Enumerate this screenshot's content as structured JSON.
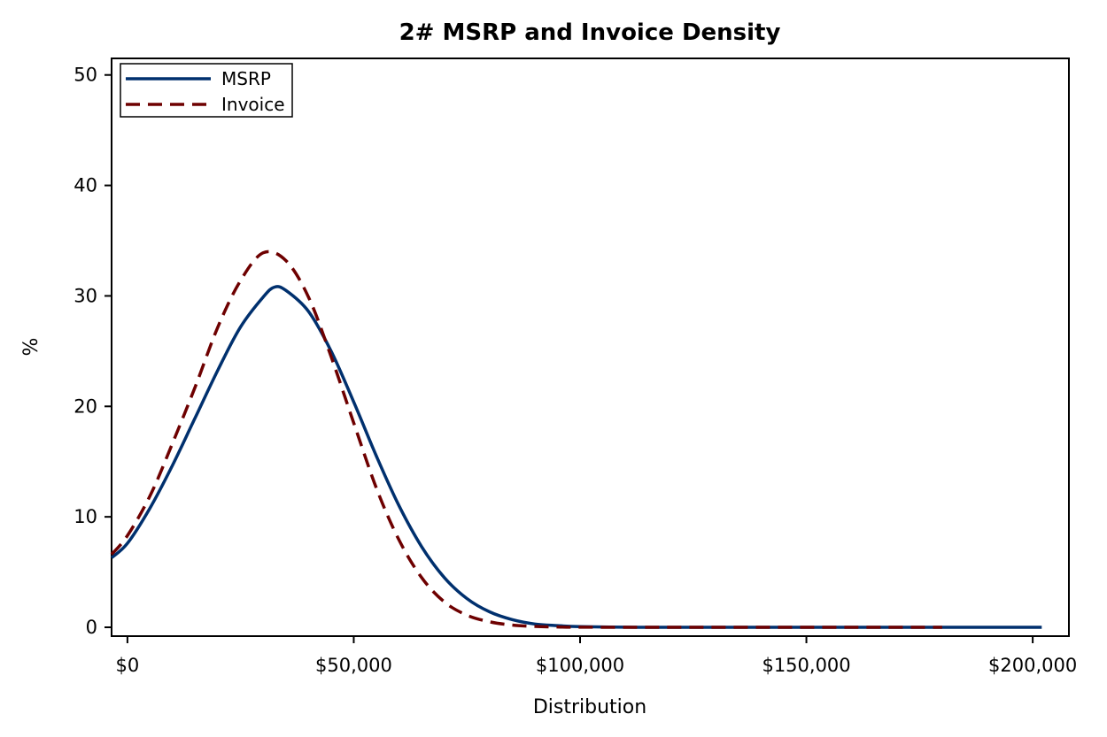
{
  "chart_data": {
    "type": "line",
    "title": "2# MSRP and Invoice Density",
    "xlabel": "Distribution",
    "ylabel": "%",
    "xlim": [
      -3500,
      208000
    ],
    "ylim": [
      -0.8,
      51.5
    ],
    "x_ticks": [
      {
        "value": 0,
        "label": "$0"
      },
      {
        "value": 50000,
        "label": "$50,000"
      },
      {
        "value": 100000,
        "label": "$100,000"
      },
      {
        "value": 150000,
        "label": "$150,000"
      },
      {
        "value": 200000,
        "label": "$200,000"
      }
    ],
    "y_ticks": [
      {
        "value": 0,
        "label": "0"
      },
      {
        "value": 10,
        "label": "10"
      },
      {
        "value": 20,
        "label": "20"
      },
      {
        "value": 30,
        "label": "30"
      },
      {
        "value": 40,
        "label": "40"
      },
      {
        "value": 50,
        "label": "50"
      }
    ],
    "grid": false,
    "legend": {
      "placement": "top-left"
    },
    "series": [
      {
        "name": "MSRP",
        "color": "#00306E",
        "style": "solid",
        "x": [
          -3500,
          0,
          5000,
          10000,
          15000,
          20000,
          25000,
          30000,
          32500,
          35000,
          40000,
          45000,
          50000,
          55000,
          60000,
          65000,
          70000,
          75000,
          80000,
          85000,
          90000,
          95000,
          100000,
          110000,
          120000,
          140000,
          160000,
          180000,
          202000
        ],
        "values": [
          6.3,
          7.6,
          10.8,
          14.7,
          19.0,
          23.3,
          27.2,
          29.9,
          30.8,
          30.5,
          28.6,
          25.0,
          20.4,
          15.5,
          11.0,
          7.3,
          4.5,
          2.6,
          1.4,
          0.7,
          0.3,
          0.15,
          0.06,
          0.01,
          0,
          0,
          0,
          0,
          0
        ]
      },
      {
        "name": "Invoice",
        "color": "#6E0000",
        "style": "dashed",
        "x": [
          -3500,
          0,
          5000,
          10000,
          15000,
          20000,
          25000,
          30000,
          35000,
          40000,
          45000,
          50000,
          55000,
          60000,
          65000,
          70000,
          75000,
          80000,
          85000,
          90000,
          95000,
          100000,
          110000,
          120000,
          140000,
          160000,
          180000
        ],
        "values": [
          6.6,
          8.3,
          11.9,
          16.7,
          21.8,
          27.2,
          31.4,
          33.9,
          33.2,
          29.9,
          24.5,
          18.5,
          12.6,
          7.9,
          4.5,
          2.3,
          1.1,
          0.5,
          0.2,
          0.08,
          0.03,
          0.01,
          0,
          0,
          0,
          0,
          0
        ]
      }
    ]
  }
}
